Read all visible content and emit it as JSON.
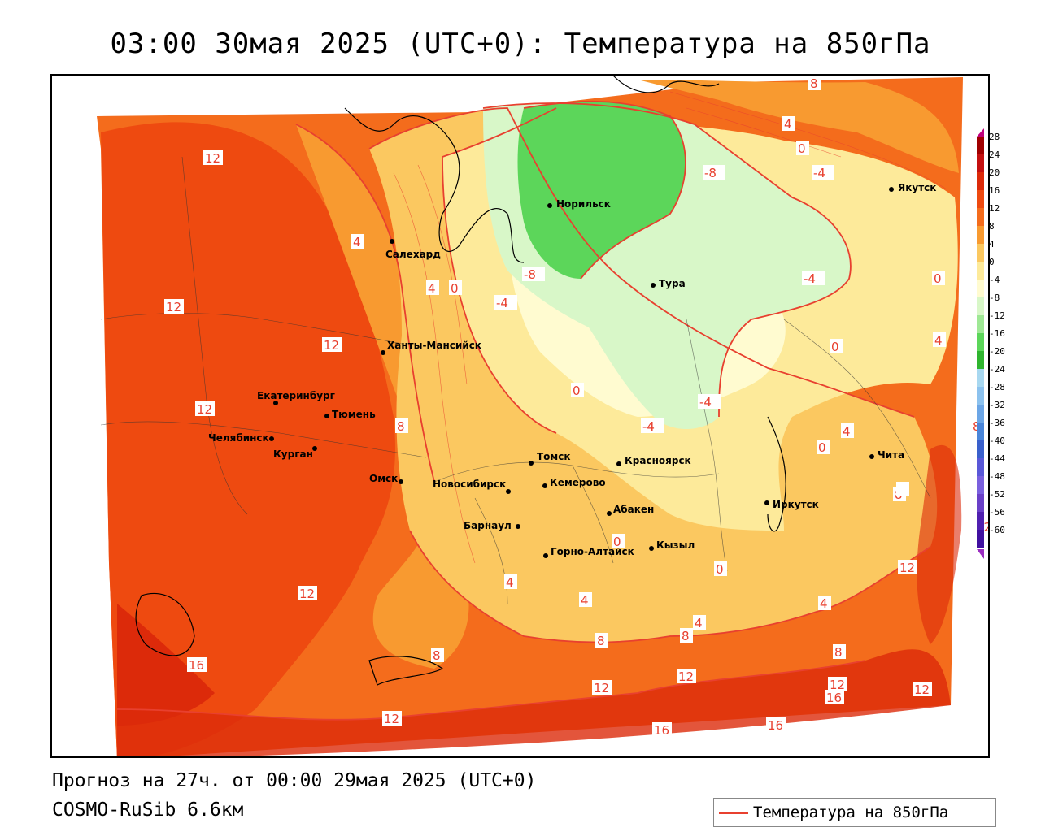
{
  "header": {
    "title": "03:00 30мая 2025 (UTC+0): Температура на 850гПа"
  },
  "footer": {
    "forecast": "Прогноз на 27ч. от 00:00 29мая 2025 (UTC+0)",
    "model": "COSMO-RuSib 6.6км"
  },
  "legend": {
    "label": "Температура на 850гПа",
    "line_color": "#e8402f"
  },
  "scale": {
    "levels": [
      "28",
      "24",
      "20",
      "16",
      "12",
      "8",
      "4",
      "0",
      "-4",
      "-8",
      "-12",
      "-16",
      "-20",
      "-24",
      "-28",
      "-32",
      "-36",
      "-40",
      "-44",
      "-48",
      "-52",
      "-56",
      "-60"
    ],
    "colors": [
      "#a00000",
      "#c41010",
      "#dc2a0a",
      "#ee4a10",
      "#f46c1c",
      "#f89a30",
      "#fbc860",
      "#fdea9a",
      "#fffbd0",
      "#d8f7c8",
      "#9fe895",
      "#5cd65a",
      "#2fb52f",
      "#a8d8f0",
      "#8cc2ee",
      "#6ca6e6",
      "#4a86da",
      "#3a60cc",
      "#5a58d8",
      "#7a60de",
      "#6a40c8",
      "#5020b0",
      "#4010a0"
    ]
  },
  "cities": [
    {
      "name": "Норильск"
    },
    {
      "name": "Салехард"
    },
    {
      "name": "Тура"
    },
    {
      "name": "Якутск"
    },
    {
      "name": "Ханты-Мансийск"
    },
    {
      "name": "Екатеринбург"
    },
    {
      "name": "Тюмень"
    },
    {
      "name": "Челябинск"
    },
    {
      "name": "Курган"
    },
    {
      "name": "Омск"
    },
    {
      "name": "Новосибирск"
    },
    {
      "name": "Томск"
    },
    {
      "name": "Кемерово"
    },
    {
      "name": "Красноярск"
    },
    {
      "name": "Барнаул"
    },
    {
      "name": "Абакен"
    },
    {
      "name": "Горно-Алтайск"
    },
    {
      "name": "Кызыл"
    },
    {
      "name": "Иркутск"
    },
    {
      "name": "Чита"
    }
  ],
  "isotherm_labels": [
    "8",
    "4",
    "0",
    "-4",
    "-8",
    "12",
    "16"
  ]
}
